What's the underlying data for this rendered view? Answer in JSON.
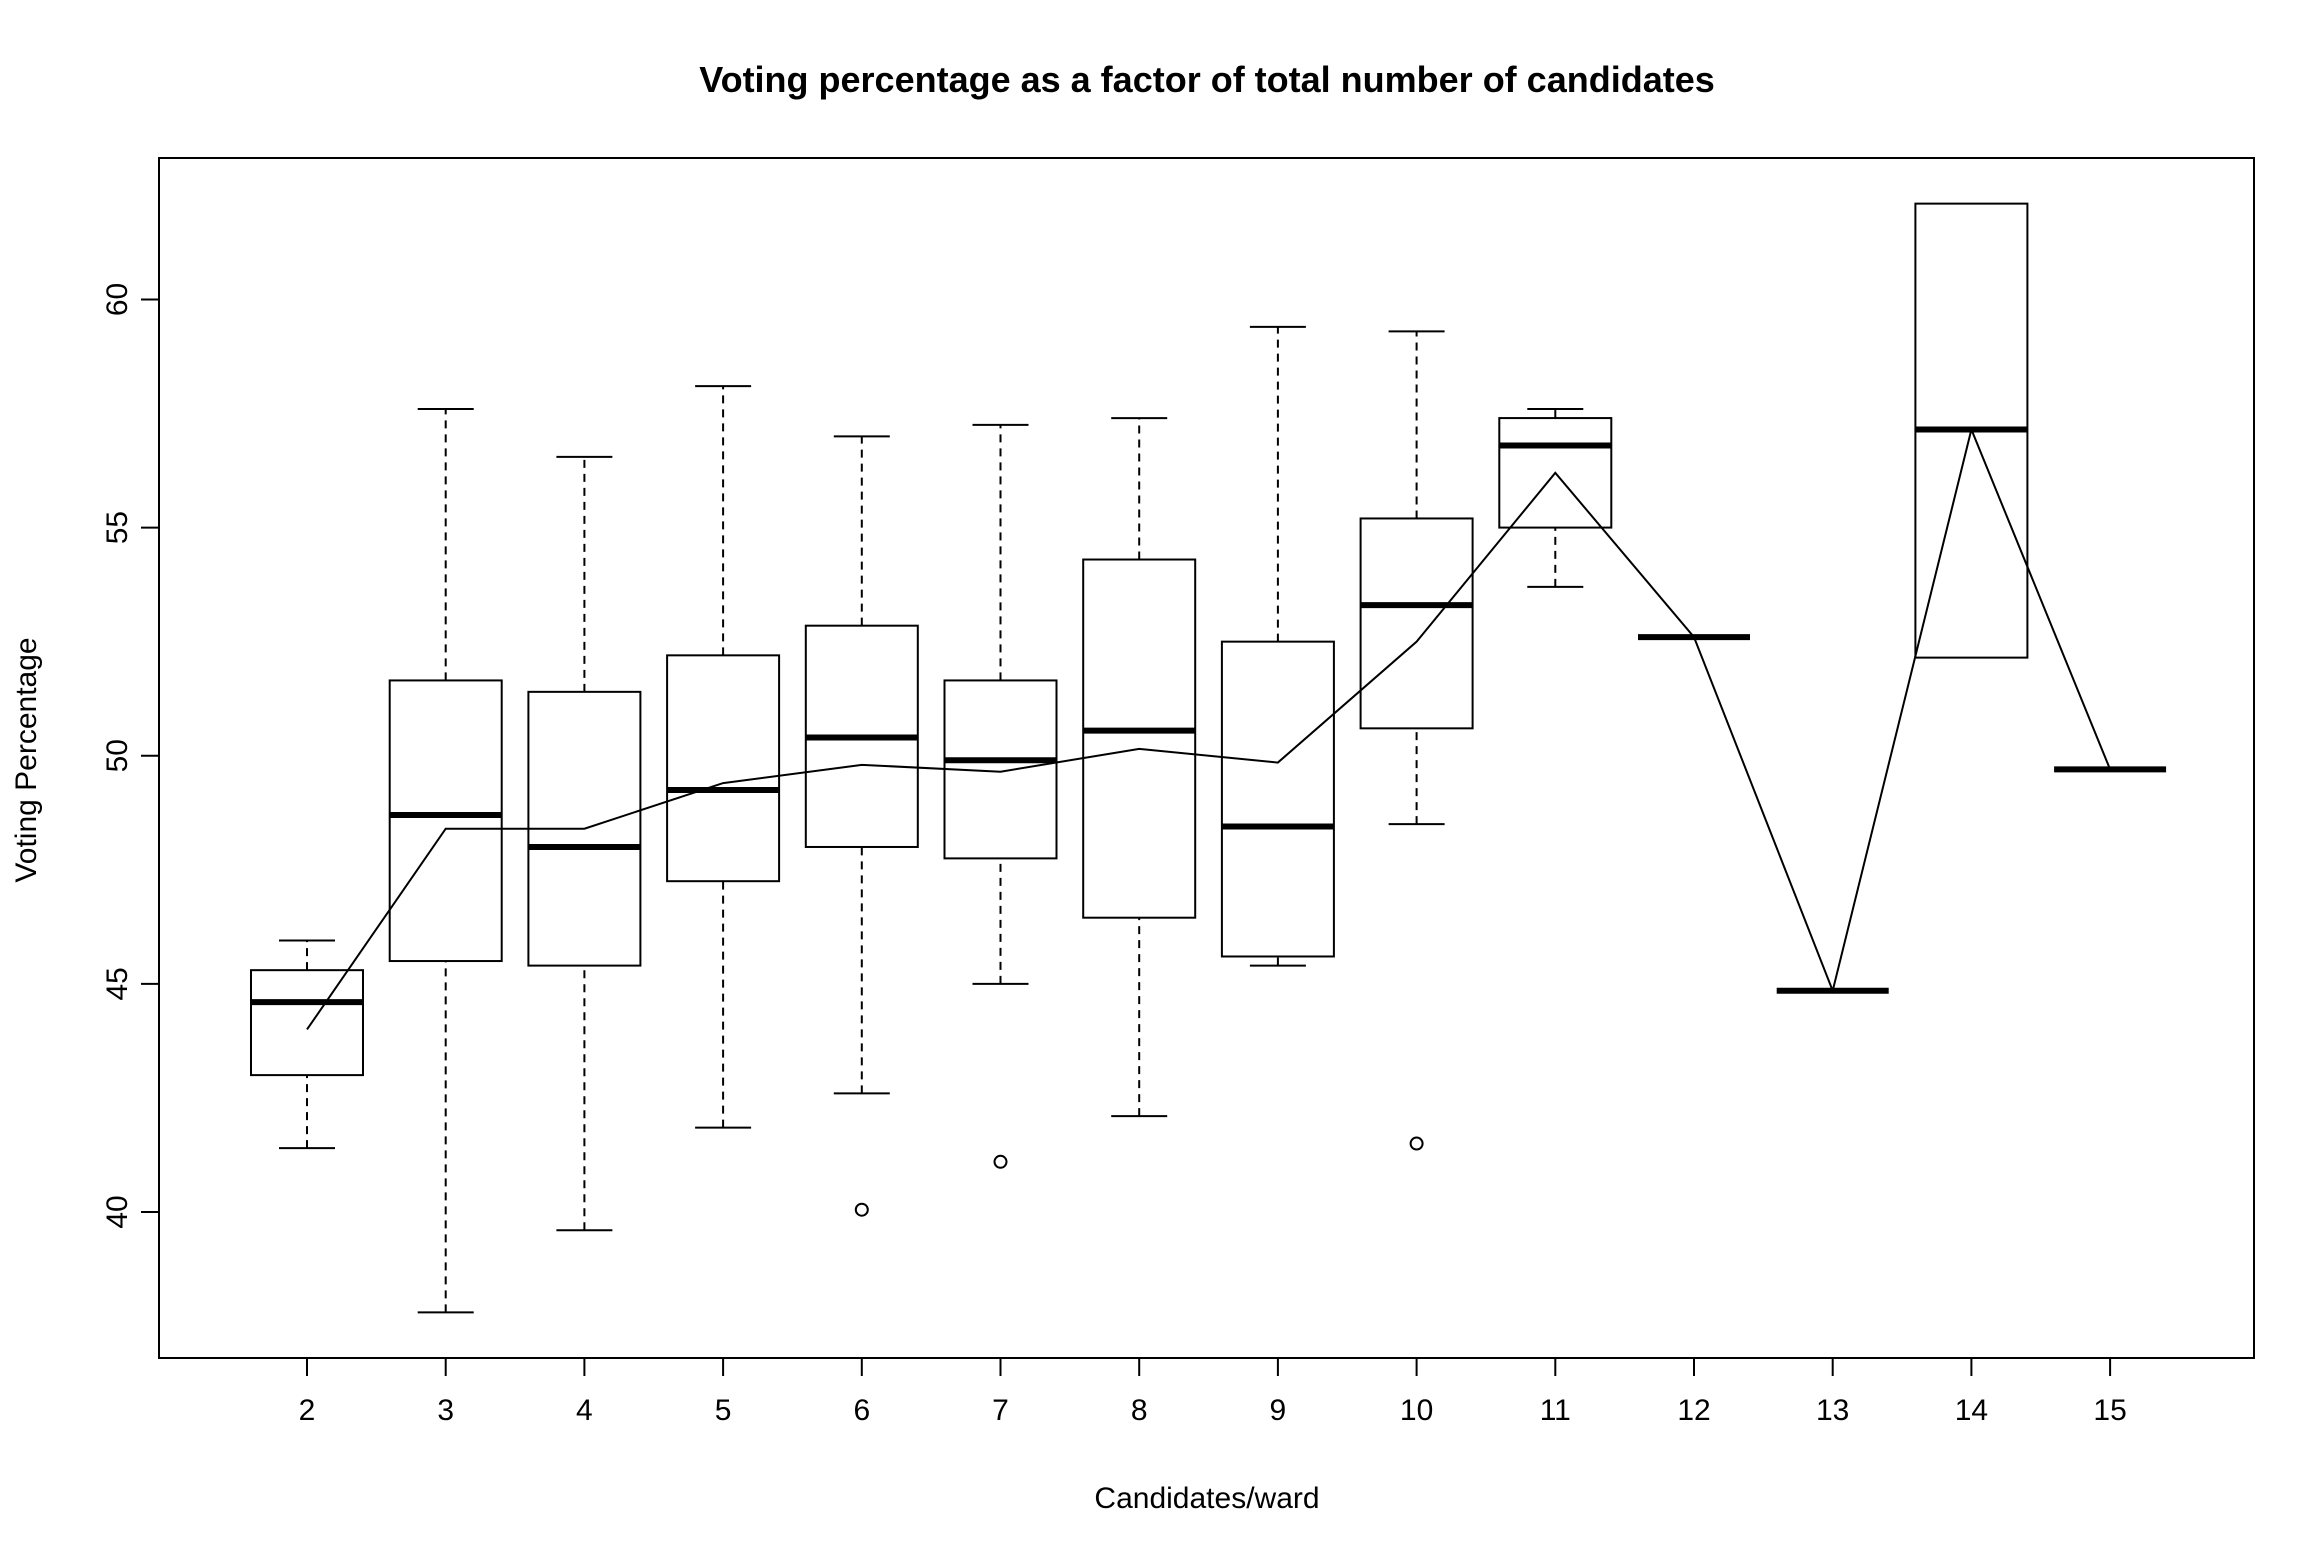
{
  "chart_data": {
    "type": "boxplot",
    "title": "Voting percentage as a factor of total number of candidates",
    "xlabel": "Candidates/ward",
    "ylabel": "Voting Percentage",
    "categories": [
      "2",
      "3",
      "4",
      "5",
      "6",
      "7",
      "8",
      "9",
      "10",
      "11",
      "12",
      "13",
      "14",
      "15"
    ],
    "ylim": [
      36.8,
      63.1
    ],
    "yticks": [
      40,
      45,
      50,
      55,
      60
    ],
    "ytick_labels": [
      "40",
      "45",
      "50",
      "55",
      "60"
    ],
    "grid": false,
    "legend": "none",
    "boxes": [
      {
        "category": "2",
        "whisker_low": 41.4,
        "q1": 43.0,
        "median": 44.6,
        "q3": 45.3,
        "whisker_high": 45.95,
        "outliers": []
      },
      {
        "category": "3",
        "whisker_low": 37.8,
        "q1": 45.5,
        "median": 48.7,
        "q3": 51.65,
        "whisker_high": 57.6,
        "outliers": []
      },
      {
        "category": "4",
        "whisker_low": 39.6,
        "q1": 45.4,
        "median": 48.0,
        "q3": 51.4,
        "whisker_high": 56.55,
        "outliers": []
      },
      {
        "category": "5",
        "whisker_low": 41.85,
        "q1": 47.25,
        "median": 49.25,
        "q3": 52.2,
        "whisker_high": 58.1,
        "outliers": []
      },
      {
        "category": "6",
        "whisker_low": 42.6,
        "q1": 48.0,
        "median": 50.4,
        "q3": 52.85,
        "whisker_high": 57.0,
        "outliers": [
          40.05
        ]
      },
      {
        "category": "7",
        "whisker_low": 45.0,
        "q1": 47.75,
        "median": 49.9,
        "q3": 51.65,
        "whisker_high": 57.25,
        "outliers": [
          41.1
        ]
      },
      {
        "category": "8",
        "whisker_low": 42.1,
        "q1": 46.45,
        "median": 50.55,
        "q3": 54.3,
        "whisker_high": 57.4,
        "outliers": []
      },
      {
        "category": "9",
        "whisker_low": 45.4,
        "q1": 45.6,
        "median": 48.45,
        "q3": 52.5,
        "whisker_high": 59.4,
        "outliers": []
      },
      {
        "category": "10",
        "whisker_low": 48.5,
        "q1": 50.6,
        "median": 53.3,
        "q3": 55.2,
        "whisker_high": 59.3,
        "outliers": [
          41.5
        ]
      },
      {
        "category": "11",
        "whisker_low": 53.7,
        "q1": 55.0,
        "median": 56.8,
        "q3": 57.4,
        "whisker_high": 57.6,
        "outliers": []
      },
      {
        "category": "12",
        "whisker_low": 52.6,
        "q1": 52.6,
        "median": 52.6,
        "q3": 52.6,
        "whisker_high": 52.6,
        "outliers": []
      },
      {
        "category": "13",
        "whisker_low": 44.85,
        "q1": 44.85,
        "median": 44.85,
        "q3": 44.85,
        "whisker_high": 44.85,
        "outliers": []
      },
      {
        "category": "14",
        "whisker_low": 52.15,
        "q1": 52.15,
        "median": 57.15,
        "q3": 62.1,
        "whisker_high": 62.1,
        "outliers": []
      },
      {
        "category": "15",
        "whisker_low": 49.7,
        "q1": 49.7,
        "median": 49.7,
        "q3": 49.7,
        "whisker_high": 49.7,
        "outliers": []
      }
    ],
    "series": [
      {
        "values": [
          44.0,
          48.4,
          48.4,
          49.4,
          49.8,
          49.65,
          50.15,
          49.85,
          52.5,
          56.2,
          52.6,
          44.85,
          57.15,
          49.7
        ]
      }
    ]
  }
}
